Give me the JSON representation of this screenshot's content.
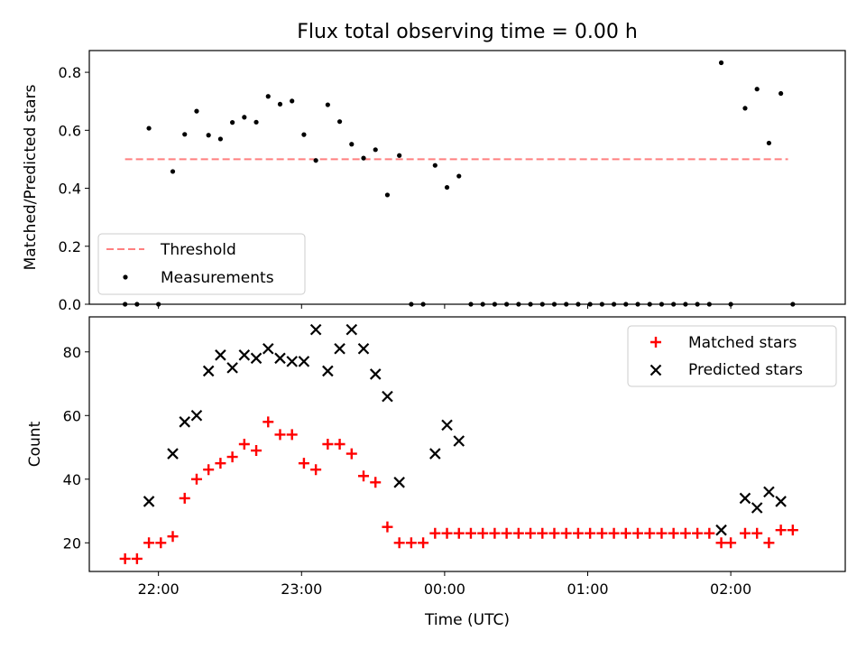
{
  "figure": {
    "title": "Flux total observing time = 0.00 h",
    "xlabel": "Time (UTC)"
  },
  "chart_data": [
    {
      "type": "scatter",
      "ylabel": "Matched/Predicted stars",
      "x_time_range": [
        "21:31",
        "02:48"
      ],
      "ylim": [
        0,
        0.875
      ],
      "yticks": [
        "0.0",
        "0.2",
        "0.4",
        "0.6",
        "0.8"
      ],
      "xticks_shown_labels": false,
      "grid": false,
      "legend_position": "lower-left",
      "threshold": {
        "name": "Threshold",
        "value": 0.5,
        "x_range": [
          "21:46",
          "02:24"
        ],
        "color": "#ff7f7f",
        "style": "dashed"
      },
      "series": [
        {
          "name": "Measurements",
          "color": "#000000",
          "points": [
            [
              "21:46",
              0.0
            ],
            [
              "21:51",
              0.0
            ],
            [
              "21:56",
              0.607
            ],
            [
              "22:00",
              0.0
            ],
            [
              "22:06",
              0.458
            ],
            [
              "22:11",
              0.586
            ],
            [
              "22:16",
              0.666
            ],
            [
              "22:21",
              0.583
            ],
            [
              "22:26",
              0.57
            ],
            [
              "22:31",
              0.627
            ],
            [
              "22:36",
              0.645
            ],
            [
              "22:41",
              0.628
            ],
            [
              "22:46",
              0.717
            ],
            [
              "22:51",
              0.69
            ],
            [
              "22:56",
              0.701
            ],
            [
              "23:01",
              0.585
            ],
            [
              "23:06",
              0.496
            ],
            [
              "23:11",
              0.688
            ],
            [
              "23:16",
              0.63
            ],
            [
              "23:21",
              0.552
            ],
            [
              "23:26",
              0.504
            ],
            [
              "23:31",
              0.533
            ],
            [
              "23:36",
              0.377
            ],
            [
              "23:41",
              0.513
            ],
            [
              "23:46",
              0.0
            ],
            [
              "23:51",
              0.0
            ],
            [
              "23:56",
              0.479
            ],
            [
              "00:01",
              0.403
            ],
            [
              "00:06",
              0.442
            ],
            [
              "00:11",
              0.0
            ],
            [
              "00:16",
              0.0
            ],
            [
              "00:21",
              0.0
            ],
            [
              "00:26",
              0.0
            ],
            [
              "00:31",
              0.0
            ],
            [
              "00:36",
              0.0
            ],
            [
              "00:41",
              0.0
            ],
            [
              "00:46",
              0.0
            ],
            [
              "00:51",
              0.0
            ],
            [
              "00:56",
              0.0
            ],
            [
              "01:01",
              0.0
            ],
            [
              "01:06",
              0.0
            ],
            [
              "01:11",
              0.0
            ],
            [
              "01:16",
              0.0
            ],
            [
              "01:21",
              0.0
            ],
            [
              "01:26",
              0.0
            ],
            [
              "01:31",
              0.0
            ],
            [
              "01:36",
              0.0
            ],
            [
              "01:41",
              0.0
            ],
            [
              "01:46",
              0.0
            ],
            [
              "01:51",
              0.0
            ],
            [
              "01:56",
              0.833
            ],
            [
              "02:00",
              0.0
            ],
            [
              "02:06",
              0.676
            ],
            [
              "02:11",
              0.742
            ],
            [
              "02:16",
              0.556
            ],
            [
              "02:21",
              0.727
            ],
            [
              "02:26",
              0.0
            ]
          ]
        }
      ]
    },
    {
      "type": "scatter",
      "ylabel": "Count",
      "x_time_range": [
        "21:31",
        "02:48"
      ],
      "ylim": [
        11,
        91
      ],
      "yticks": [
        "20",
        "40",
        "60",
        "80"
      ],
      "xticks": [
        "22:00",
        "23:00",
        "00:00",
        "01:00",
        "02:00"
      ],
      "grid": false,
      "legend_position": "upper-right",
      "series": [
        {
          "name": "Matched stars",
          "marker": "+",
          "color": "#ff0000",
          "points": [
            [
              "21:46",
              15
            ],
            [
              "21:51",
              15
            ],
            [
              "21:56",
              20
            ],
            [
              "22:01",
              20
            ],
            [
              "22:06",
              22
            ],
            [
              "22:11",
              34
            ],
            [
              "22:16",
              40
            ],
            [
              "22:21",
              43
            ],
            [
              "22:26",
              45
            ],
            [
              "22:31",
              47
            ],
            [
              "22:36",
              51
            ],
            [
              "22:41",
              49
            ],
            [
              "22:46",
              58
            ],
            [
              "22:51",
              54
            ],
            [
              "22:56",
              54
            ],
            [
              "23:01",
              45
            ],
            [
              "23:06",
              43
            ],
            [
              "23:11",
              51
            ],
            [
              "23:16",
              51
            ],
            [
              "23:21",
              48
            ],
            [
              "23:26",
              41
            ],
            [
              "23:31",
              39
            ],
            [
              "23:36",
              25
            ],
            [
              "23:41",
              20
            ],
            [
              "23:46",
              20
            ],
            [
              "23:51",
              20
            ],
            [
              "23:56",
              23
            ],
            [
              "00:01",
              23
            ],
            [
              "00:06",
              23
            ],
            [
              "00:11",
              23
            ],
            [
              "00:16",
              23
            ],
            [
              "00:21",
              23
            ],
            [
              "00:26",
              23
            ],
            [
              "00:31",
              23
            ],
            [
              "00:36",
              23
            ],
            [
              "00:41",
              23
            ],
            [
              "00:46",
              23
            ],
            [
              "00:51",
              23
            ],
            [
              "00:56",
              23
            ],
            [
              "01:01",
              23
            ],
            [
              "01:06",
              23
            ],
            [
              "01:11",
              23
            ],
            [
              "01:16",
              23
            ],
            [
              "01:21",
              23
            ],
            [
              "01:26",
              23
            ],
            [
              "01:31",
              23
            ],
            [
              "01:36",
              23
            ],
            [
              "01:41",
              23
            ],
            [
              "01:46",
              23
            ],
            [
              "01:51",
              23
            ],
            [
              "01:56",
              20
            ],
            [
              "02:00",
              20
            ],
            [
              "02:06",
              23
            ],
            [
              "02:11",
              23
            ],
            [
              "02:16",
              20
            ],
            [
              "02:21",
              24
            ],
            [
              "02:26",
              24
            ]
          ]
        },
        {
          "name": "Predicted stars",
          "marker": "x",
          "color": "#000000",
          "points": [
            [
              "21:56",
              33
            ],
            [
              "22:06",
              48
            ],
            [
              "22:11",
              58
            ],
            [
              "22:16",
              60
            ],
            [
              "22:21",
              74
            ],
            [
              "22:26",
              79
            ],
            [
              "22:31",
              75
            ],
            [
              "22:36",
              79
            ],
            [
              "22:41",
              78
            ],
            [
              "22:46",
              81
            ],
            [
              "22:51",
              78
            ],
            [
              "22:56",
              77
            ],
            [
              "23:01",
              77
            ],
            [
              "23:06",
              87
            ],
            [
              "23:11",
              74
            ],
            [
              "23:16",
              81
            ],
            [
              "23:21",
              87
            ],
            [
              "23:26",
              81
            ],
            [
              "23:31",
              73
            ],
            [
              "23:36",
              66
            ],
            [
              "23:41",
              39
            ],
            [
              "23:56",
              48
            ],
            [
              "00:01",
              57
            ],
            [
              "00:06",
              52
            ],
            [
              "01:56",
              24
            ],
            [
              "02:06",
              34
            ],
            [
              "02:11",
              31
            ],
            [
              "02:16",
              36
            ],
            [
              "02:21",
              33
            ]
          ]
        }
      ]
    }
  ]
}
